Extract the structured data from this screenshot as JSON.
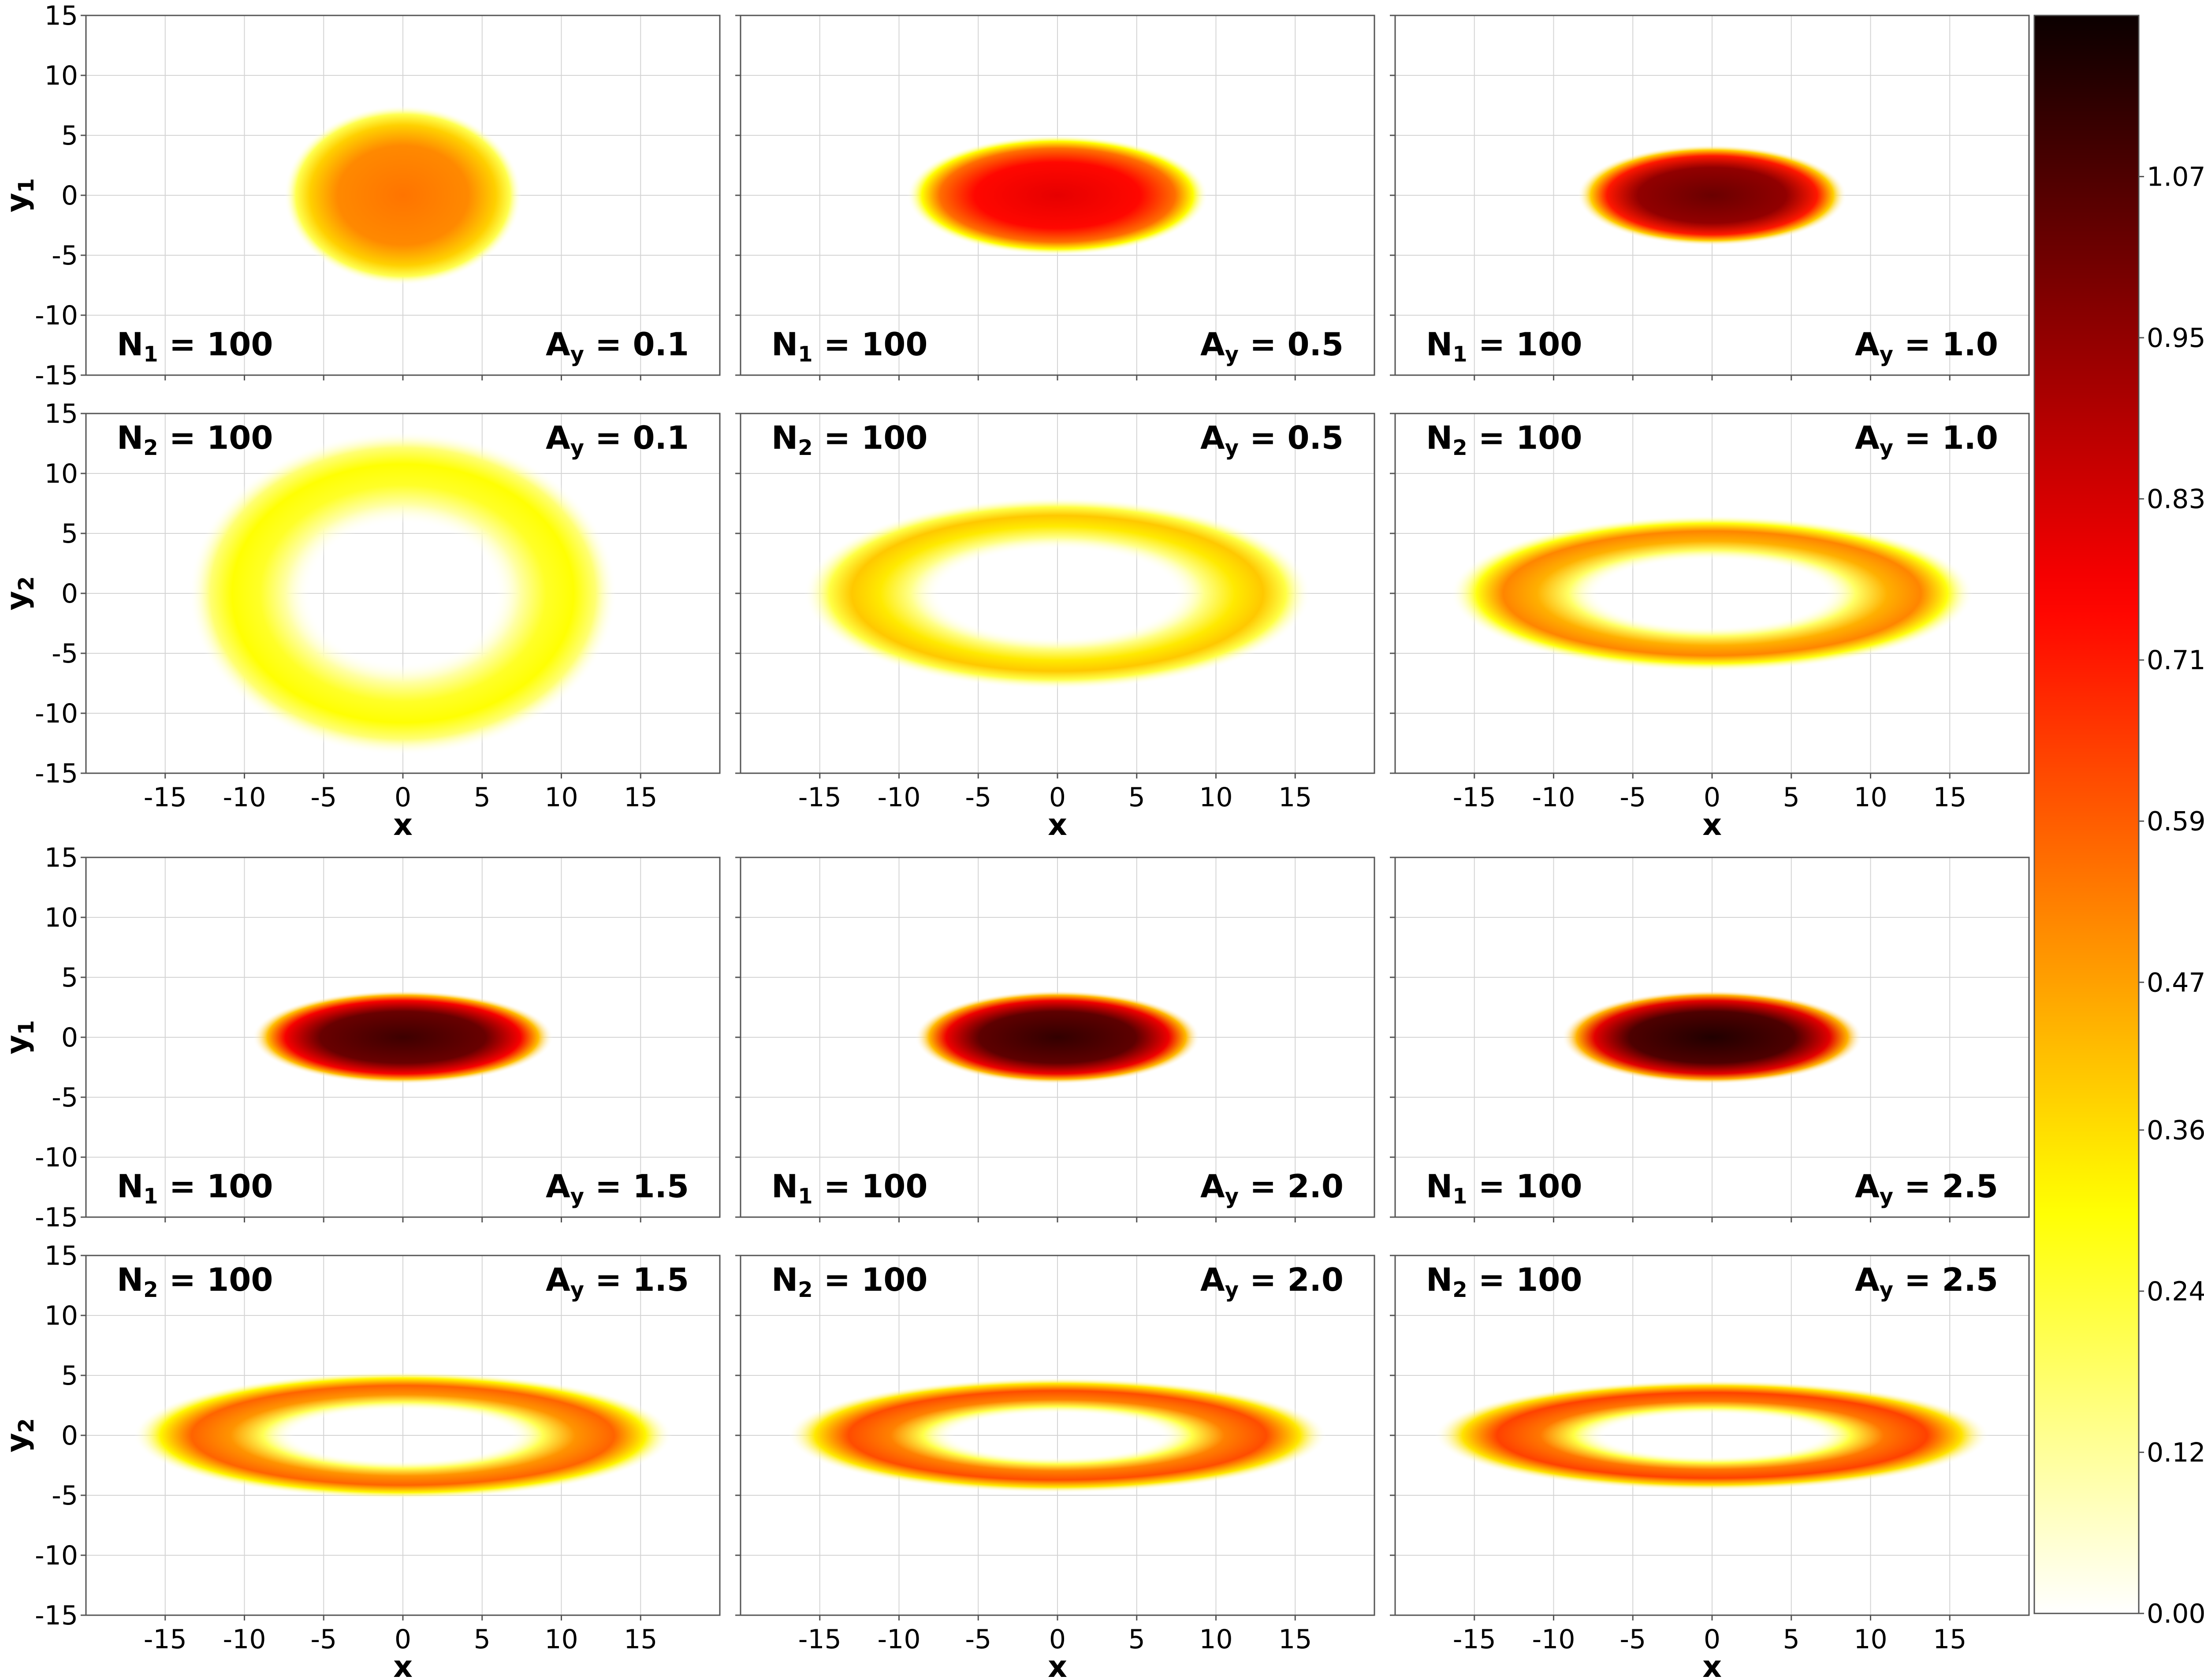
{
  "chart_data": {
    "type": "heatmap",
    "colorbar": {
      "colormap": "hot_r",
      "range": [
        0,
        1.19
      ],
      "ticks": [
        "0.00",
        "0.12",
        "0.24",
        "0.36",
        "0.47",
        "0.59",
        "0.71",
        "0.83",
        "0.95",
        "1.07"
      ],
      "location": "right"
    },
    "x_ticks": [
      "-15",
      "-10",
      "-5",
      "0",
      "5",
      "10",
      "15"
    ],
    "y_ticks": [
      "15",
      "10",
      "5",
      "0",
      "-5",
      "-10",
      "-15"
    ],
    "xlim": [
      -20,
      20
    ],
    "ylim": [
      -15,
      15
    ],
    "grid": true,
    "xlabel": "x",
    "ylabels": {
      "y1": {
        "base": "y",
        "sub": "1"
      },
      "y2": {
        "base": "y",
        "sub": "2"
      }
    },
    "panels": [
      {
        "row": 0,
        "col": 0,
        "n_base": "N",
        "n_sub": "1",
        "n_value": "= 100",
        "a_base": "A",
        "a_sub": "y",
        "a_value": "= 0.1",
        "ann_pos": "bottom",
        "shape": "disk",
        "rx": 7.5,
        "ry": 7.5,
        "rin": 0,
        "peak": 0.55
      },
      {
        "row": 0,
        "col": 1,
        "n_base": "N",
        "n_sub": "1",
        "n_value": "= 100",
        "a_base": "A",
        "a_sub": "y",
        "a_value": "= 0.5",
        "ann_pos": "bottom",
        "shape": "disk",
        "rx": 9.5,
        "ry": 5.0,
        "rin": 0,
        "peak": 0.8
      },
      {
        "row": 0,
        "col": 2,
        "n_base": "N",
        "n_sub": "1",
        "n_value": "= 100",
        "a_base": "A",
        "a_sub": "y",
        "a_value": "= 1.0",
        "ann_pos": "bottom",
        "shape": "disk",
        "rx": 8.5,
        "ry": 4.2,
        "rin": 0,
        "peak": 1.02
      },
      {
        "row": 1,
        "col": 0,
        "n_base": "N",
        "n_sub": "2",
        "n_value": "= 100",
        "a_base": "A",
        "a_sub": "y",
        "a_value": "= 0.1",
        "ann_pos": "top",
        "shape": "ring",
        "rx": 13.5,
        "ry": 13.5,
        "rin": 0.55,
        "peak": 0.3
      },
      {
        "row": 1,
        "col": 1,
        "n_base": "N",
        "n_sub": "2",
        "n_value": "= 100",
        "a_base": "A",
        "a_sub": "y",
        "a_value": "= 0.5",
        "ann_pos": "top",
        "shape": "ring",
        "rx": 16.0,
        "ry": 8.0,
        "rin": 0.58,
        "peak": 0.4
      },
      {
        "row": 1,
        "col": 2,
        "n_base": "N",
        "n_sub": "2",
        "n_value": "= 100",
        "a_base": "A",
        "a_sub": "y",
        "a_value": "= 1.0",
        "ann_pos": "top",
        "shape": "ring",
        "rx": 16.5,
        "ry": 6.5,
        "rin": 0.55,
        "peak": 0.52
      },
      {
        "row": 2,
        "col": 0,
        "n_base": "N",
        "n_sub": "1",
        "n_value": "= 100",
        "a_base": "A",
        "a_sub": "y",
        "a_value": "= 1.5",
        "ann_pos": "bottom",
        "shape": "disk",
        "rx": 9.5,
        "ry": 3.9,
        "rin": 0,
        "peak": 1.1
      },
      {
        "row": 2,
        "col": 1,
        "n_base": "N",
        "n_sub": "1",
        "n_value": "= 100",
        "a_base": "A",
        "a_sub": "y",
        "a_value": "= 2.0",
        "ann_pos": "bottom",
        "shape": "disk",
        "rx": 9.0,
        "ry": 3.9,
        "rin": 0,
        "peak": 1.12
      },
      {
        "row": 2,
        "col": 2,
        "n_base": "N",
        "n_sub": "1",
        "n_value": "= 100",
        "a_base": "A",
        "a_sub": "y",
        "a_value": "= 2.5",
        "ann_pos": "bottom",
        "shape": "disk",
        "rx": 9.5,
        "ry": 3.9,
        "rin": 0,
        "peak": 1.15
      },
      {
        "row": 3,
        "col": 0,
        "n_base": "N",
        "n_sub": "2",
        "n_value": "= 100",
        "a_base": "A",
        "a_sub": "y",
        "a_value": "= 1.5",
        "ann_pos": "top",
        "shape": "ring",
        "rx": 17.0,
        "ry": 5.3,
        "rin": 0.52,
        "peak": 0.58
      },
      {
        "row": 3,
        "col": 1,
        "n_base": "N",
        "n_sub": "2",
        "n_value": "= 100",
        "a_base": "A",
        "a_sub": "y",
        "a_value": "= 2.0",
        "ann_pos": "top",
        "shape": "ring",
        "rx": 17.0,
        "ry": 4.8,
        "rin": 0.5,
        "peak": 0.62
      },
      {
        "row": 3,
        "col": 2,
        "n_base": "N",
        "n_sub": "2",
        "n_value": "= 100",
        "a_base": "A",
        "a_sub": "y",
        "a_value": "= 2.5",
        "ann_pos": "top",
        "shape": "ring",
        "rx": 17.5,
        "ry": 4.6,
        "rin": 0.5,
        "peak": 0.64
      }
    ]
  }
}
